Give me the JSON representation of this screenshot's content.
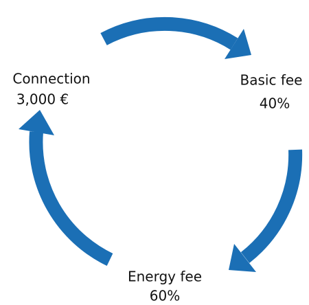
{
  "nodes": [
    {
      "label": "Connection",
      "value": "3,000 €"
    },
    {
      "label": "Basic fee",
      "value": "40%"
    },
    {
      "label": "Energy fee",
      "value": "60%"
    }
  ]
}
